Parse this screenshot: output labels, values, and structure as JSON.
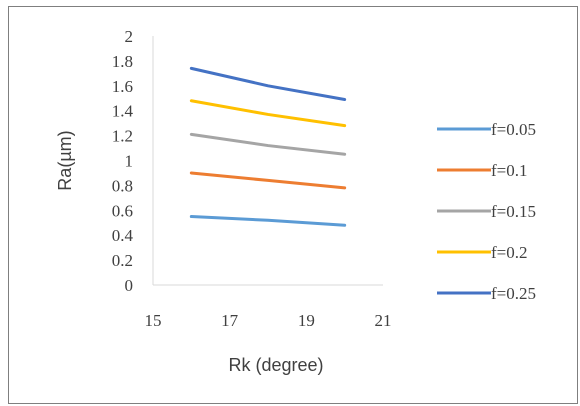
{
  "chart_data": {
    "type": "line",
    "title": "",
    "xlabel": "Rk (degree)",
    "ylabel": "Ra(µm)",
    "xlim": [
      15,
      21
    ],
    "ylim": [
      0,
      2
    ],
    "xticks": [
      "15",
      "17",
      "19",
      "21"
    ],
    "yticks": [
      "0",
      "0.2",
      "0.4",
      "0.6",
      "0.8",
      "1",
      "1.2",
      "1.4",
      "1.6",
      "1.8",
      "2"
    ],
    "grid": false,
    "legend_position": "right",
    "x": [
      16,
      18,
      20
    ],
    "series": [
      {
        "name": "f=0.05",
        "color": "#5b9bd5",
        "values": [
          0.55,
          0.52,
          0.48
        ]
      },
      {
        "name": "f=0.1",
        "color": "#ed7d31",
        "values": [
          0.9,
          0.84,
          0.78
        ]
      },
      {
        "name": "f=0.15",
        "color": "#a5a5a5",
        "values": [
          1.21,
          1.12,
          1.05
        ]
      },
      {
        "name": "f=0.2",
        "color": "#ffc000",
        "values": [
          1.48,
          1.37,
          1.28
        ]
      },
      {
        "name": "f=0.25",
        "color": "#4472c4",
        "values": [
          1.74,
          1.6,
          1.49
        ]
      }
    ]
  }
}
